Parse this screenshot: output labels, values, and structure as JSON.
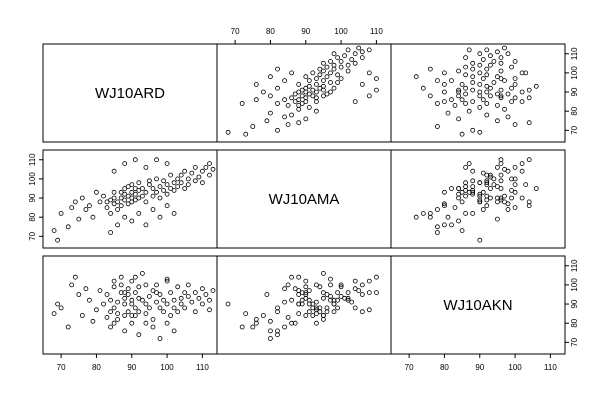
{
  "chart_data": {
    "type": "scatter",
    "variables": [
      "WJ10ARD",
      "WJ10AMA",
      "WJ10AKN"
    ],
    "axis_range": [
      66,
      113
    ],
    "ticks": [
      70,
      80,
      90,
      100,
      110
    ],
    "tick_labels": [
      "70",
      "80",
      "90",
      "100",
      "110"
    ],
    "grid": false,
    "observations": [
      [
        68,
        73,
        85
      ],
      [
        69,
        68,
        90
      ],
      [
        70,
        82,
        88
      ],
      [
        72,
        75,
        78
      ],
      [
        73,
        85,
        100
      ],
      [
        74,
        88,
        104
      ],
      [
        75,
        79,
        95
      ],
      [
        76,
        90,
        84
      ],
      [
        77,
        84,
        98
      ],
      [
        78,
        86,
        92
      ],
      [
        79,
        80,
        81
      ],
      [
        80,
        93,
        87
      ],
      [
        81,
        88,
        97
      ],
      [
        82,
        91,
        90
      ],
      [
        83,
        85,
        83
      ],
      [
        83,
        88,
        95
      ],
      [
        84,
        82,
        86
      ],
      [
        84,
        89,
        92
      ],
      [
        85,
        87,
        80
      ],
      [
        85,
        90,
        99
      ],
      [
        85,
        93,
        88
      ],
      [
        86,
        84,
        91
      ],
      [
        86,
        88,
        85
      ],
      [
        87,
        90,
        96
      ],
      [
        87,
        93,
        100
      ],
      [
        87,
        86,
        104
      ],
      [
        88,
        89,
        90
      ],
      [
        88,
        92,
        84
      ],
      [
        88,
        95,
        93
      ],
      [
        89,
        87,
        98
      ],
      [
        89,
        91,
        86
      ],
      [
        89,
        96,
        95
      ],
      [
        90,
        88,
        90
      ],
      [
        90,
        90,
        102
      ],
      [
        90,
        93,
        80
      ],
      [
        90,
        97,
        92
      ],
      [
        91,
        89,
        96
      ],
      [
        91,
        92,
        88
      ],
      [
        91,
        95,
        84
      ],
      [
        92,
        90,
        93
      ],
      [
        92,
        94,
        99
      ],
      [
        92,
        98,
        86
      ],
      [
        93,
        91,
        92
      ],
      [
        93,
        95,
        106
      ],
      [
        94,
        88,
        90
      ],
      [
        94,
        93,
        85
      ],
      [
        95,
        97,
        94
      ],
      [
        95,
        99,
        88
      ],
      [
        96,
        91,
        97
      ],
      [
        96,
        95,
        82
      ],
      [
        97,
        93,
        91
      ],
      [
        97,
        100,
        100
      ],
      [
        98,
        96,
        88
      ],
      [
        98,
        90,
        95
      ],
      [
        99,
        94,
        86
      ],
      [
        99,
        99,
        92
      ],
      [
        100,
        97,
        103
      ],
      [
        100,
        92,
        90
      ],
      [
        101,
        95,
        84
      ],
      [
        101,
        102,
        96
      ],
      [
        102,
        98,
        92
      ],
      [
        102,
        94,
        88
      ],
      [
        103,
        100,
        99
      ],
      [
        103,
        96,
        86
      ],
      [
        104,
        102,
        93
      ],
      [
        104,
        98,
        90
      ],
      [
        105,
        95,
        96
      ],
      [
        105,
        104,
        88
      ],
      [
        106,
        100,
        94
      ],
      [
        106,
        97,
        100
      ],
      [
        107,
        103,
        91
      ],
      [
        108,
        99,
        96
      ],
      [
        108,
        106,
        86
      ],
      [
        109,
        101,
        93
      ],
      [
        110,
        104,
        98
      ],
      [
        110,
        98,
        90
      ],
      [
        111,
        106,
        95
      ],
      [
        112,
        102,
        92
      ],
      [
        112,
        108,
        87
      ],
      [
        113,
        105,
        97
      ],
      [
        84,
        72,
        78
      ],
      [
        86,
        76,
        82
      ],
      [
        88,
        80,
        76
      ],
      [
        90,
        78,
        84
      ],
      [
        92,
        82,
        74
      ],
      [
        94,
        76,
        80
      ],
      [
        96,
        84,
        78
      ],
      [
        98,
        80,
        72
      ],
      [
        100,
        86,
        80
      ],
      [
        102,
        82,
        76
      ],
      [
        85,
        104,
        102
      ],
      [
        88,
        108,
        96
      ],
      [
        91,
        110,
        104
      ],
      [
        94,
        106,
        100
      ],
      [
        97,
        110,
        96
      ],
      [
        100,
        108,
        102
      ]
    ]
  }
}
